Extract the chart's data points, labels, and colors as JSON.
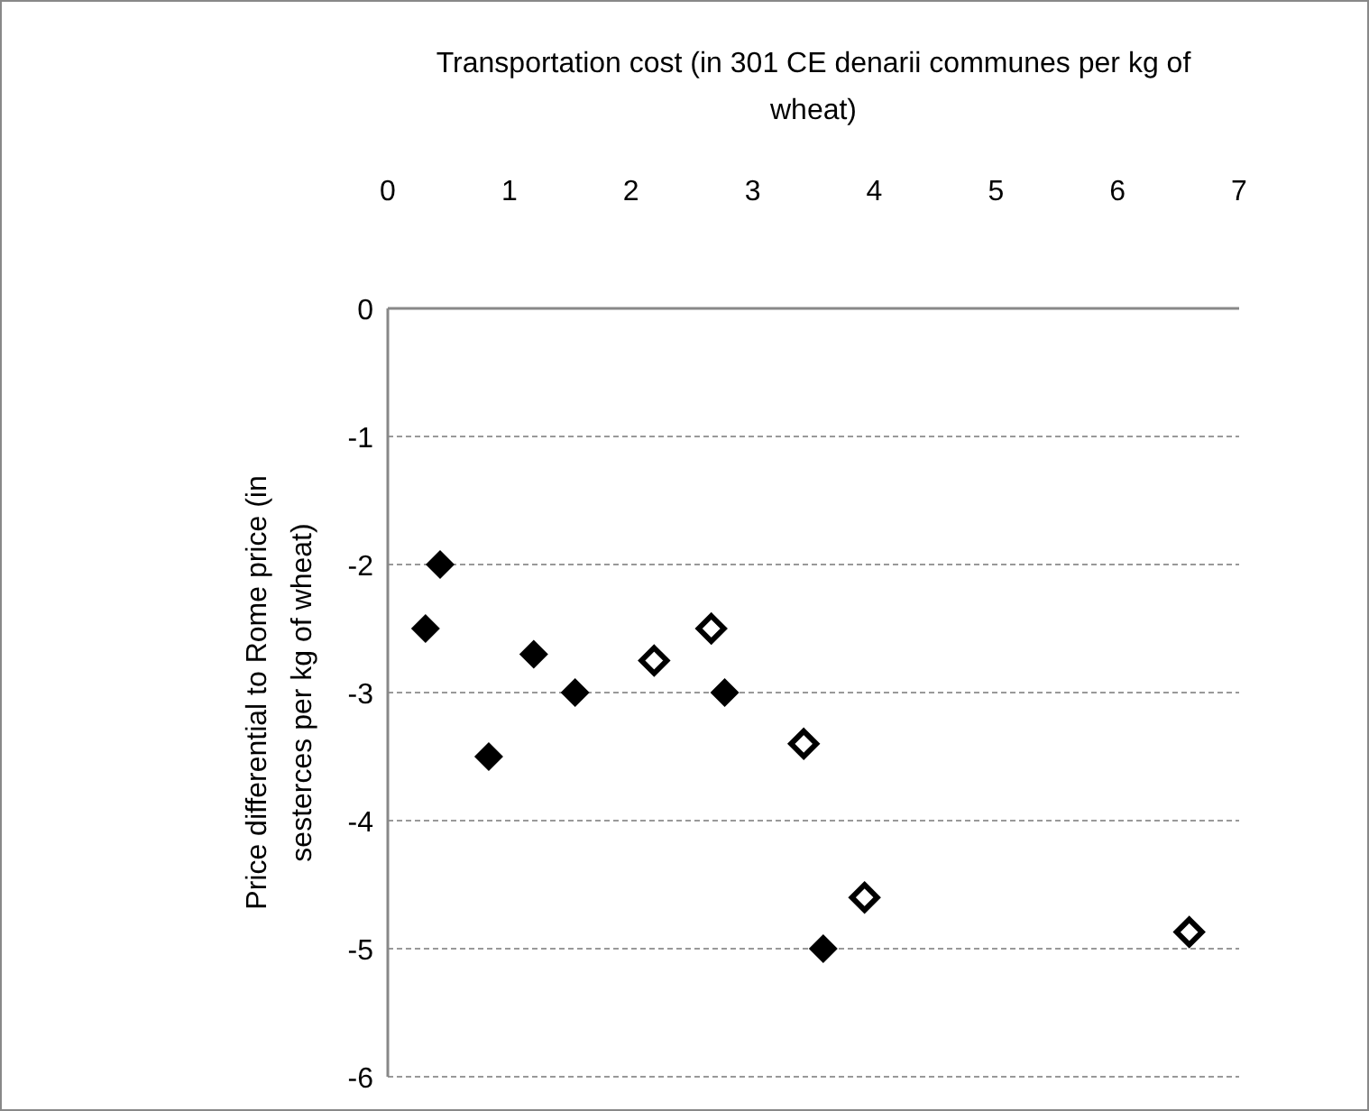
{
  "chart_data": {
    "type": "scatter",
    "xlabel": "Transportation cost (in 301 CE denarii communes per kg of wheat)",
    "ylabel": "Price differential to Rome price (in sesterces per kg of wheat)",
    "xlim": [
      0,
      7
    ],
    "xticks": [
      0,
      1,
      2,
      3,
      4,
      5,
      6,
      7
    ],
    "ylim": [
      -6,
      0
    ],
    "yticks": [
      -6,
      -5,
      -4,
      -3,
      -2,
      -1,
      0
    ],
    "grid": "y",
    "marker": "diamond",
    "series": [
      {
        "color": "#000000",
        "x": [
          0.31,
          0.43,
          0.83,
          1.2,
          1.54,
          2.77,
          3.58
        ],
        "values": [
          -2.5,
          -2,
          -3.5,
          -2.7,
          -3,
          -3,
          -5
        ]
      },
      {
        "color": "#000000",
        "x": [
          2.19,
          2.66,
          3.42,
          3.92,
          6.59
        ],
        "values": [
          -2.75,
          -2.5,
          -3.4,
          -4.6,
          -4.87
        ]
      }
    ]
  }
}
